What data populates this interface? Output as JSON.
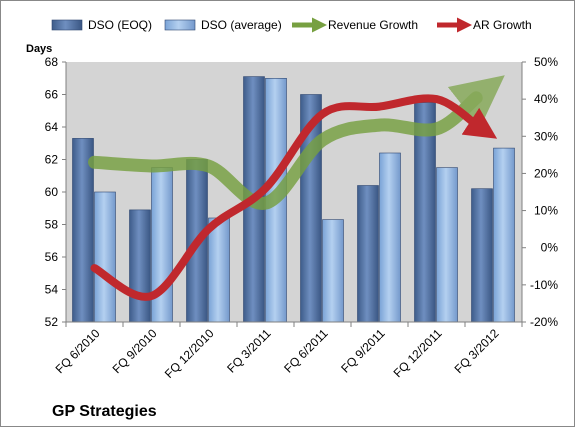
{
  "chart_data": {
    "type": "bar",
    "title": "GP Strategies",
    "ylabel": "Days",
    "ylim": [
      52,
      68
    ],
    "yticks": [
      52,
      54,
      56,
      58,
      60,
      62,
      64,
      66,
      68
    ],
    "y2lim": [
      -20,
      50
    ],
    "y2ticks": [
      "-20%",
      "-10%",
      "0%",
      "10%",
      "20%",
      "30%",
      "40%",
      "50%"
    ],
    "y2values": [
      -20,
      -10,
      0,
      10,
      20,
      30,
      40,
      50
    ],
    "categories": [
      "FQ 6/2010",
      "FQ 9/2010",
      "FQ 12/2010",
      "FQ 3/2011",
      "FQ 6/2011",
      "FQ 9/2011",
      "FQ 12/2011",
      "FQ 3/2012"
    ],
    "series": [
      {
        "name": "DSO (EOQ)",
        "type": "bar",
        "axis": "left",
        "color": "#4f6fa0",
        "values": [
          63.3,
          58.9,
          62.0,
          67.1,
          66.0,
          60.4,
          65.5,
          60.2
        ]
      },
      {
        "name": "DSO (average)",
        "type": "bar",
        "axis": "left",
        "color": "#8fb4e3",
        "values": [
          60.0,
          61.5,
          58.4,
          67.0,
          58.3,
          62.4,
          61.5,
          62.7
        ]
      },
      {
        "name": "Revenue Growth",
        "type": "line",
        "axis": "right",
        "color": "#77a041",
        "values": [
          23,
          22,
          22,
          12,
          29,
          33,
          32,
          44
        ]
      },
      {
        "name": "AR Growth",
        "type": "line",
        "axis": "right",
        "color": "#c0282d",
        "values": [
          -5.5,
          -13,
          5,
          16,
          36,
          38,
          40,
          30
        ]
      }
    ],
    "legend": "top",
    "grid": false,
    "plot_background": "#d4d4d4"
  }
}
